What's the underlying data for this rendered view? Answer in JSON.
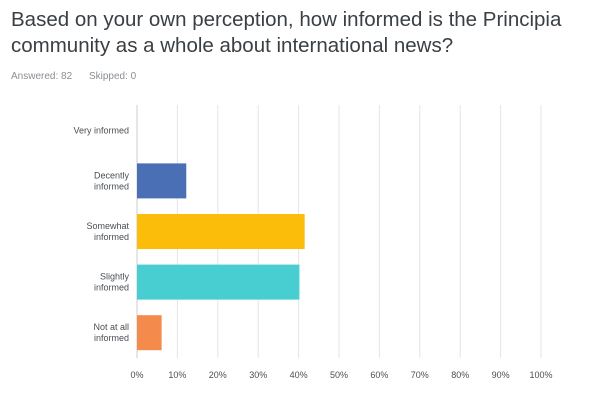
{
  "survey": {
    "question": "Based on your own perception, how informed is the Principia community as a whole about international news?",
    "answered": "Answered: 82",
    "skipped": "Skipped: 0"
  },
  "chart_data": {
    "type": "bar",
    "orientation": "horizontal",
    "categories": [
      "Very informed",
      "Decently informed",
      "Somewhat informed",
      "Slightly informed",
      "Not at all informed"
    ],
    "category_lines": [
      [
        "Very informed"
      ],
      [
        "Decently",
        "informed"
      ],
      [
        "Somewhat",
        "informed"
      ],
      [
        "Slightly",
        "informed"
      ],
      [
        "Not at all",
        "informed"
      ]
    ],
    "values": [
      0,
      12.2,
      41.5,
      40.2,
      6.1
    ],
    "colors": [
      "#2f80c8",
      "#4a6fb5",
      "#fbbd0a",
      "#48cdd0",
      "#f48a4c"
    ],
    "xlim": [
      0,
      100
    ],
    "xticks": [
      "0%",
      "10%",
      "20%",
      "30%",
      "40%",
      "50%",
      "60%",
      "70%",
      "80%",
      "90%",
      "100%"
    ],
    "grid": true
  }
}
